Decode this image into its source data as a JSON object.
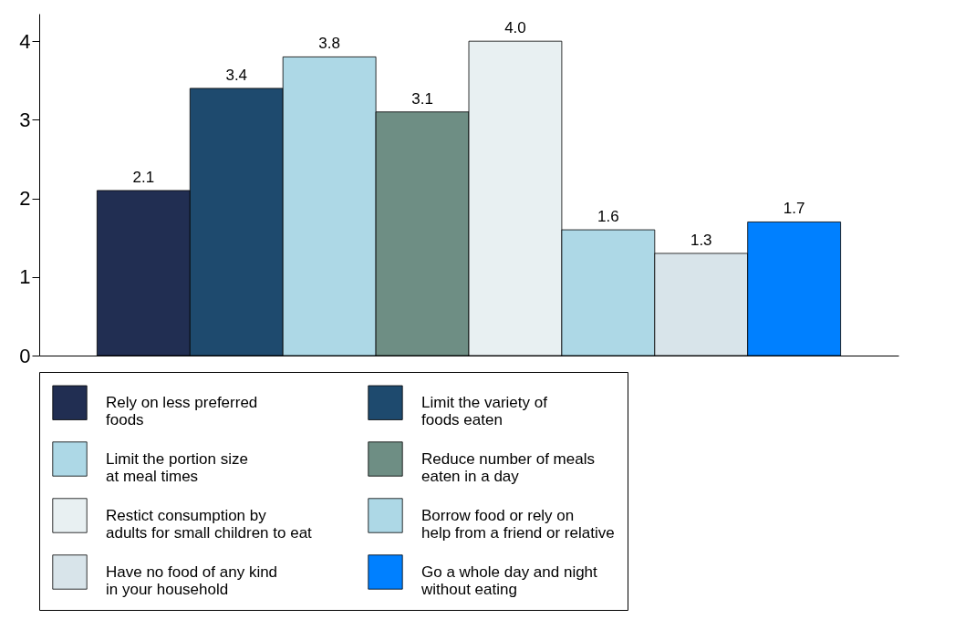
{
  "chart_data": {
    "type": "bar",
    "categories": [
      null
    ],
    "series": [
      {
        "name": "Rely on less preferred\nfoods",
        "color": "#212e52",
        "values": [
          2.1
        ],
        "value_labels": [
          "2.1"
        ]
      },
      {
        "name": "Limit the variety of\nfoods eaten",
        "color": "#1e4a6e",
        "values": [
          3.4
        ],
        "value_labels": [
          "3.4"
        ]
      },
      {
        "name": "Limit the portion size\nat meal times",
        "color": "#add8e6",
        "values": [
          3.8
        ],
        "value_labels": [
          "3.8"
        ]
      },
      {
        "name": "Reduce number of meals\neaten in a day",
        "color": "#6e8e84",
        "values": [
          3.1
        ],
        "value_labels": [
          "3.1"
        ]
      },
      {
        "name": "Restict consumption by\nadults for small children to eat",
        "color": "#e8f0f2",
        "values": [
          4.0
        ],
        "value_labels": [
          "4.0"
        ]
      },
      {
        "name": "Borrow food or rely on\nhelp from a friend or relative",
        "color": "#add8e6",
        "values": [
          1.6
        ],
        "value_labels": [
          "1.6"
        ]
      },
      {
        "name": "Have no food of any kind\n in your household",
        "color": "#d8e4ea",
        "values": [
          1.3
        ],
        "value_labels": [
          "1.3"
        ]
      },
      {
        "name": "Go a whole day and night\nwithout eating",
        "color": "#0080ff",
        "values": [
          1.7
        ],
        "value_labels": [
          "1.7"
        ]
      }
    ],
    "ylim": [
      0,
      4.35
    ],
    "yticks": [
      0,
      1,
      2,
      3,
      4
    ],
    "grid": false,
    "legend": "bottom",
    "tick_labels": "y"
  }
}
